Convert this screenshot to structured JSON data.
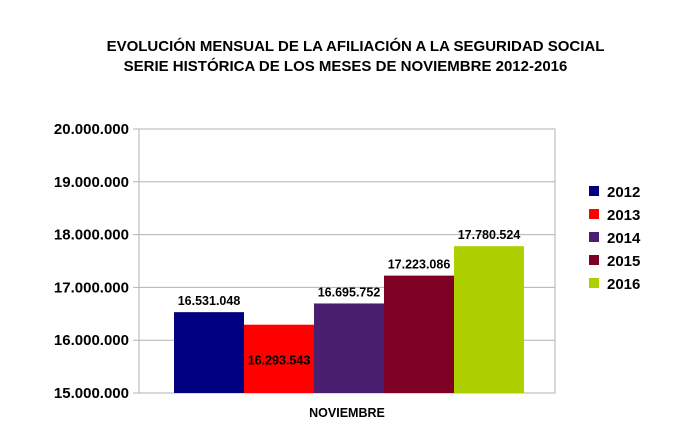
{
  "chart_data": {
    "type": "bar",
    "title": "EVOLUCIÓN MENSUAL DE LA  AFILIACIÓN A LA SEGURIDAD SOCIAL",
    "subtitle": "SERIE HISTÓRICA DE LOS MESES DE NOVIEMBRE 2012-2016",
    "categories": [
      "NOVIEMBRE"
    ],
    "series": [
      {
        "name": "2012",
        "values": [
          16531048
        ],
        "label": "16.531.048",
        "color": "#000080"
      },
      {
        "name": "2013",
        "values": [
          16293543
        ],
        "label": "16.293.543",
        "color": "#ff0000"
      },
      {
        "name": "2014",
        "values": [
          16695752
        ],
        "label": "16.695.752",
        "color": "#4b1f6f"
      },
      {
        "name": "2015",
        "values": [
          17223086
        ],
        "label": "17.223.086",
        "color": "#7f0025"
      },
      {
        "name": "2016",
        "values": [
          17780524
        ],
        "label": "17.780.524",
        "color": "#aecf00"
      }
    ],
    "ylim": [
      15000000,
      20000000
    ],
    "yticks": [
      {
        "value": 20000000,
        "label": "20.000.000"
      },
      {
        "value": 19000000,
        "label": "19.000.000"
      },
      {
        "value": 18000000,
        "label": "18.000.000"
      },
      {
        "value": 17000000,
        "label": "17.000.000"
      },
      {
        "value": 16000000,
        "label": "16.000.000"
      },
      {
        "value": 15000000,
        "label": "15.000.000"
      }
    ],
    "grid": true,
    "legend": "right"
  }
}
